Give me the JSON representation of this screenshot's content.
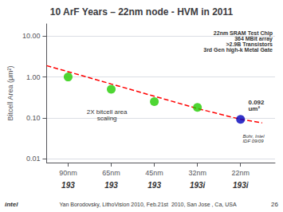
{
  "chart_data": {
    "type": "scatter",
    "title": "10 ArF Years – 22nm node - HVM in 2011",
    "y_label": "Bitcell Area (μm²)",
    "log": "y",
    "grid": true,
    "xlim": [
      -0.5,
      4.8
    ],
    "xticks": [
      {
        "value": 0,
        "label": "90nm"
      },
      {
        "value": 1,
        "label": "65nm"
      },
      {
        "value": 2,
        "label": "45nm"
      },
      {
        "value": 3,
        "label": "32nm"
      },
      {
        "value": 4,
        "label": "22nm"
      }
    ],
    "ylim": [
      0.008,
      20
    ],
    "yticks": [
      0.01,
      {
        "value": 0.1,
        "label": "0.10"
      },
      {
        "value": 1,
        "label": "1.00"
      },
      {
        "value": 10,
        "label": "10.00"
      }
    ],
    "series": [
      {
        "type": "line",
        "color": "#FF0000",
        "line_style": "dashed",
        "x": [
          -0.5,
          0,
          1,
          2,
          3,
          4,
          4.5
        ],
        "values": [
          1.9,
          1.35,
          0.675,
          0.338,
          0.169,
          0.092,
          0.075
        ]
      },
      {
        "type": "scatter",
        "color": "#22cc00",
        "marker": "circle",
        "x": [
          0,
          1,
          2,
          3
        ],
        "values": [
          1.0,
          0.5,
          0.25,
          0.18
        ]
      },
      {
        "type": "scatter",
        "color": "#0000bb",
        "marker": "circle",
        "x": [
          4
        ],
        "values": [
          0.092
        ]
      }
    ],
    "annotations": [
      "0.092\num²",
      "Bohr, Intel\nIDF 09/09",
      "2X bitcell area\nscaling",
      "22nm SRAM Test Chip\n364 MBit array\n>2.9B Transistors\n3rd Gen high-k Metal Gate"
    ],
    "bottom_labels": [
      "193",
      "193",
      "193",
      "193i",
      "193i"
    ],
    "footer": [
      "intel",
      "Yan Borodovsky, LithoVision 2010, Feb.21st  2010, San Jose , Ca, USA",
      "26"
    ]
  }
}
